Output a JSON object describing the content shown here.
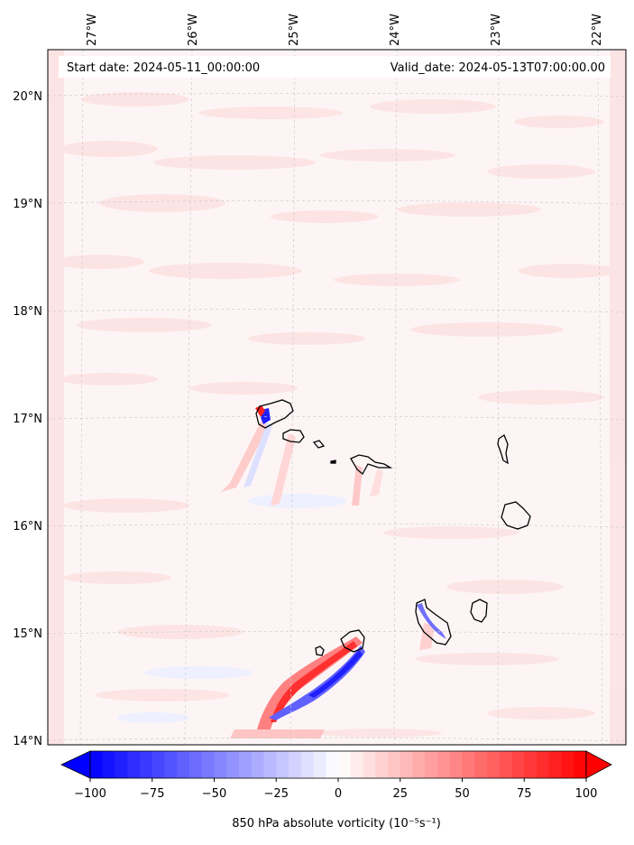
{
  "header": {
    "start_date": "Start date: 2024-05-11_00:00:00",
    "valid_date": "Valid_date: 2024-05-13T07:00:00.00"
  },
  "map": {
    "lon_range": [
      -27.35,
      -21.8
    ],
    "lat_range": [
      13.95,
      20.4
    ],
    "lon_ticks": [
      {
        "value": -27,
        "label": "27°W"
      },
      {
        "value": -26,
        "label": "26°W"
      },
      {
        "value": -25,
        "label": "25°W"
      },
      {
        "value": -24,
        "label": "24°W"
      },
      {
        "value": -23,
        "label": "23°W"
      },
      {
        "value": -22,
        "label": "22°W"
      }
    ],
    "lat_ticks": [
      {
        "value": 20,
        "label": "20°N"
      },
      {
        "value": 19,
        "label": "19°N"
      },
      {
        "value": 18,
        "label": "18°N"
      },
      {
        "value": 17,
        "label": "17°N"
      },
      {
        "value": 16,
        "label": "16°N"
      },
      {
        "value": 15,
        "label": "15°N"
      },
      {
        "value": 14,
        "label": "14°N"
      }
    ],
    "gridlines": true,
    "background_color": "#fdf5f5",
    "pale_band_color": "#fde6e6"
  },
  "colorbar": {
    "label": "850 hPa absolute vorticity (10⁻⁵s⁻¹)",
    "min": -100,
    "max": 100,
    "ticks": [
      {
        "value": -100,
        "label": "−100"
      },
      {
        "value": -75,
        "label": "−75"
      },
      {
        "value": -50,
        "label": "−50"
      },
      {
        "value": -25,
        "label": "−25"
      },
      {
        "value": 0,
        "label": "0"
      },
      {
        "value": 25,
        "label": "25"
      },
      {
        "value": 50,
        "label": "50"
      },
      {
        "value": 75,
        "label": "75"
      },
      {
        "value": 100,
        "label": "100"
      }
    ],
    "extend": "both",
    "negative_color": "#0000ff",
    "positive_color": "#ff0000",
    "neutral_color": "#ffffff"
  }
}
